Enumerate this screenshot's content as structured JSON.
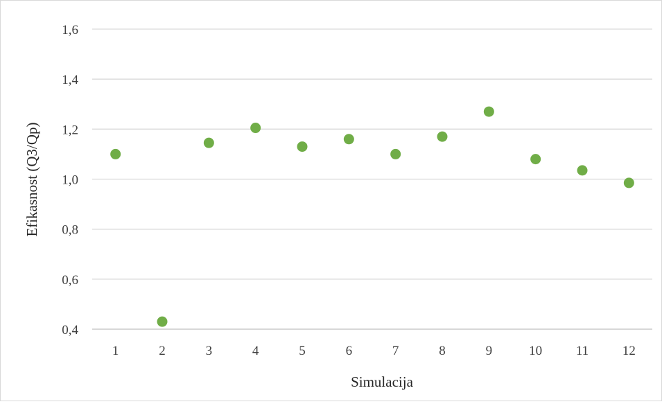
{
  "chart_data": {
    "type": "scatter",
    "title": "",
    "xlabel": "Simulacija",
    "ylabel": "Efikasnost (Q3/Qp)",
    "x": [
      1,
      2,
      3,
      4,
      5,
      6,
      7,
      8,
      9,
      10,
      11,
      12
    ],
    "y": [
      1.1,
      0.43,
      1.145,
      1.205,
      1.13,
      1.16,
      1.1,
      1.17,
      1.27,
      1.08,
      1.035,
      0.985
    ],
    "x_tick_labels": [
      "1",
      "2",
      "3",
      "4",
      "5",
      "6",
      "7",
      "8",
      "9",
      "10",
      "11",
      "12"
    ],
    "y_ticks": [
      0.4,
      0.6,
      0.8,
      1.0,
      1.2,
      1.4,
      1.6
    ],
    "y_tick_labels": [
      "0,4",
      "0,6",
      "0,8",
      "1,0",
      "1,2",
      "1,4",
      "1,6"
    ],
    "ylim": [
      0.4,
      1.6
    ],
    "grid": "horizontal",
    "legend": "none",
    "marker_color": "#70ad47",
    "gridline_color": "#d9d9d9",
    "axis_line_color": "#bfbfbf"
  }
}
